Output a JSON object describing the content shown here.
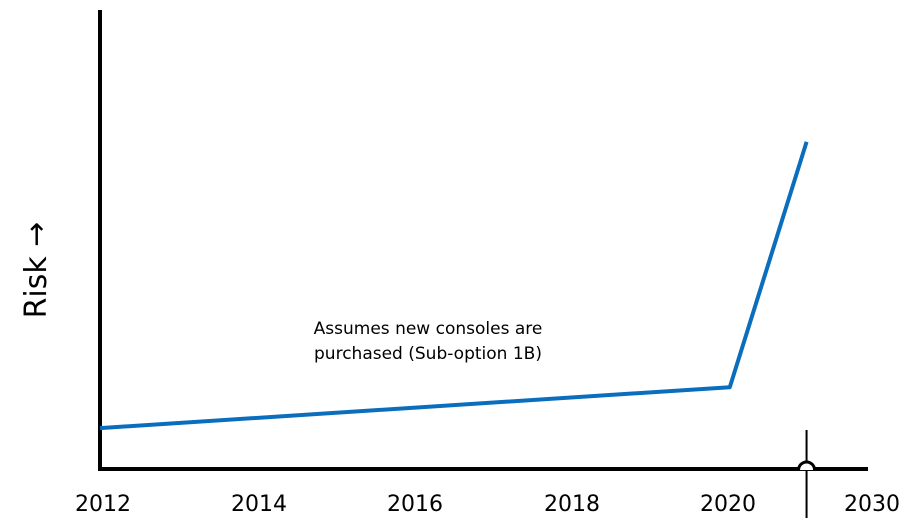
{
  "chart_data": {
    "type": "line",
    "title": "",
    "xlabel": "",
    "ylabel": "Risk →",
    "x_ticks": [
      "2012",
      "2014",
      "2016",
      "2018",
      "2020",
      "2030"
    ],
    "xlim": [
      2012,
      2022
    ],
    "ylim": [
      0,
      10
    ],
    "series": [
      {
        "x": [
          2012,
          2020.2,
          2021.2
        ],
        "y": [
          1.0,
          2.0,
          8.0
        ],
        "color": "#0a6ebd"
      }
    ],
    "annotation": {
      "line1": "Assumes new consoles are",
      "line2": "purchased (Sub-option 1B)"
    },
    "axis_break": {
      "x": 2021.2
    },
    "grid": false
  }
}
